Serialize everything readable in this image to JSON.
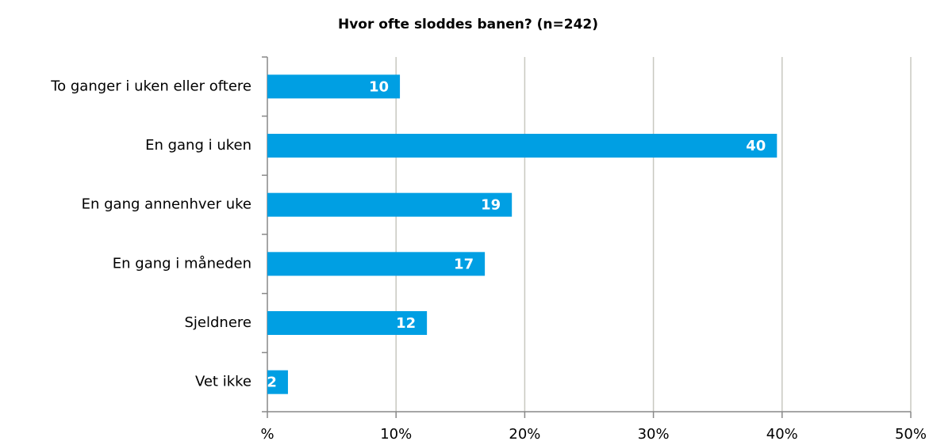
{
  "chart_data": {
    "type": "hbar",
    "title": "Hvor ofte sloddes banen? (n=242)",
    "categories": [
      "To ganger i uken eller oftere",
      "En gang i uken",
      "En gang annenhver uke",
      "En gang i måneden",
      "Sjeldnere",
      "Vet ikke"
    ],
    "values": [
      10.3,
      39.6,
      19.0,
      16.9,
      12.4,
      1.6
    ],
    "value_labels": [
      "10",
      "40",
      "19",
      "17",
      "12",
      "2"
    ],
    "color": "#009fe3",
    "xlim": [
      0,
      50
    ],
    "xticks": [
      {
        "value": 0,
        "label": "%"
      },
      {
        "value": 10,
        "label": "10%"
      },
      {
        "value": 20,
        "label": "20%"
      },
      {
        "value": 30,
        "label": "30%"
      },
      {
        "value": 40,
        "label": "40%"
      },
      {
        "value": 50,
        "label": "50%"
      }
    ],
    "grid": true
  }
}
